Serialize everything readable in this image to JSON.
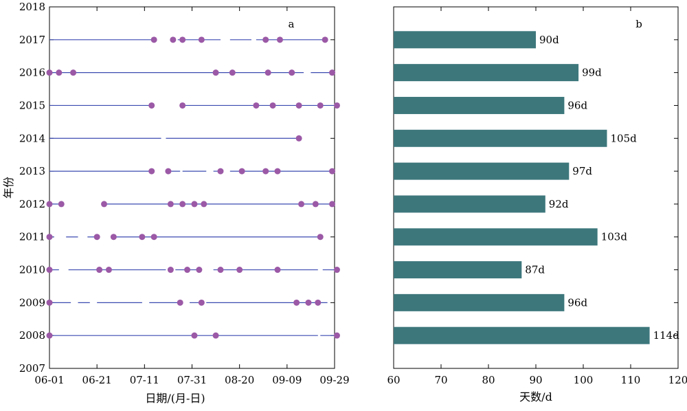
{
  "colors": {
    "line": "#3a4ab0",
    "dot": "#9b59a6",
    "bar": "#3d777c",
    "axis": "#000000"
  },
  "chart_data": [
    {
      "type": "line",
      "panel_label": "a",
      "xlabel": "日期/(月-日)",
      "ylabel": "年份",
      "x_ticks": [
        "06-01",
        "06-21",
        "07-11",
        "07-31",
        "08-20",
        "09-09",
        "09-29"
      ],
      "xlim_days": [
        0,
        120
      ],
      "y_ticks": [
        "2007",
        "2008",
        "2009",
        "2010",
        "2011",
        "2012",
        "2013",
        "2014",
        "2015",
        "2016",
        "2017",
        "2018"
      ],
      "ylim": [
        2007,
        2018
      ],
      "series": [
        {
          "year": 2017,
          "segments": [
            [
              "06-01",
              "07-15"
            ],
            [
              "07-25",
              "08-12"
            ],
            [
              "08-16",
              "08-25"
            ],
            [
              "08-27",
              "09-25"
            ]
          ],
          "points": [
            "07-15",
            "07-23",
            "07-27",
            "08-04",
            "08-31",
            "09-06",
            "09-25"
          ]
        },
        {
          "year": 2016,
          "segments": [
            [
              "06-01",
              "08-10"
            ],
            [
              "08-10",
              "09-16"
            ],
            [
              "09-19",
              "09-29"
            ]
          ],
          "points": [
            "06-01",
            "06-05",
            "06-11",
            "08-10",
            "08-17",
            "09-01",
            "09-11",
            "09-28"
          ]
        },
        {
          "year": 2015,
          "segments": [
            [
              "06-01",
              "07-14"
            ],
            [
              "07-27",
              "09-30"
            ]
          ],
          "points": [
            "07-14",
            "07-27",
            "08-27",
            "09-03",
            "09-14",
            "09-23",
            "09-30"
          ]
        },
        {
          "year": 2014,
          "segments": [
            [
              "06-01",
              "07-18"
            ],
            [
              "07-20",
              "09-14"
            ]
          ],
          "points": [
            "09-14"
          ]
        },
        {
          "year": 2013,
          "segments": [
            [
              "06-01",
              "07-14"
            ],
            [
              "07-21",
              "07-26"
            ],
            [
              "07-27",
              "08-06"
            ],
            [
              "08-09",
              "08-13"
            ],
            [
              "08-16",
              "09-28"
            ]
          ],
          "points": [
            "07-14",
            "07-21",
            "08-12",
            "08-21",
            "08-31",
            "09-05",
            "09-28"
          ]
        },
        {
          "year": 2012,
          "segments": [
            [
              "06-01",
              "06-06"
            ],
            [
              "06-24",
              "09-29"
            ]
          ],
          "points": [
            "06-01",
            "06-06",
            "06-24",
            "07-22",
            "07-27",
            "08-01",
            "08-05",
            "09-15",
            "09-21",
            "09-28"
          ]
        },
        {
          "year": 2011,
          "segments": [
            [
              "06-01",
              "06-03"
            ],
            [
              "06-08",
              "06-13"
            ],
            [
              "06-17",
              "06-22"
            ],
            [
              "06-27",
              "09-23"
            ]
          ],
          "points": [
            "06-01",
            "06-21",
            "06-28",
            "07-10",
            "07-15",
            "09-23"
          ]
        },
        {
          "year": 2010,
          "segments": [
            [
              "06-02",
              "06-05"
            ],
            [
              "06-09",
              "07-20"
            ],
            [
              "07-24",
              "08-02"
            ],
            [
              "08-09",
              "09-22"
            ],
            [
              "09-24",
              "09-30"
            ]
          ],
          "points": [
            "06-01",
            "06-22",
            "06-26",
            "07-22",
            "07-29",
            "08-03",
            "08-12",
            "08-20",
            "09-05",
            "09-30"
          ]
        },
        {
          "year": 2009,
          "segments": [
            [
              "06-01",
              "06-10"
            ],
            [
              "06-13",
              "06-18"
            ],
            [
              "06-21",
              "07-10"
            ],
            [
              "07-13",
              "07-26"
            ],
            [
              "07-30",
              "08-03"
            ],
            [
              "08-06",
              "09-26"
            ]
          ],
          "points": [
            "06-01",
            "07-26",
            "08-04",
            "09-13",
            "09-18",
            "09-22"
          ]
        },
        {
          "year": 2008,
          "segments": [
            [
              "06-01",
              "09-22"
            ],
            [
              "09-23",
              "09-29"
            ]
          ],
          "points": [
            "06-01",
            "08-01",
            "08-10",
            "09-30"
          ]
        }
      ]
    },
    {
      "type": "bar",
      "orientation": "horizontal",
      "panel_label": "b",
      "xlabel": "天数/d",
      "xlim": [
        60,
        120
      ],
      "x_ticks": [
        "60",
        "70",
        "80",
        "90",
        "100",
        "110",
        "120"
      ],
      "categories": [
        2017,
        2016,
        2015,
        2014,
        2013,
        2012,
        2011,
        2010,
        2009,
        2008
      ],
      "values": [
        90,
        99,
        96,
        105,
        97,
        92,
        103,
        87,
        96,
        114
      ],
      "value_labels": [
        "90d",
        "99d",
        "96d",
        "105d",
        "97d",
        "92d",
        "103d",
        "87d",
        "96d",
        "114d"
      ]
    }
  ]
}
